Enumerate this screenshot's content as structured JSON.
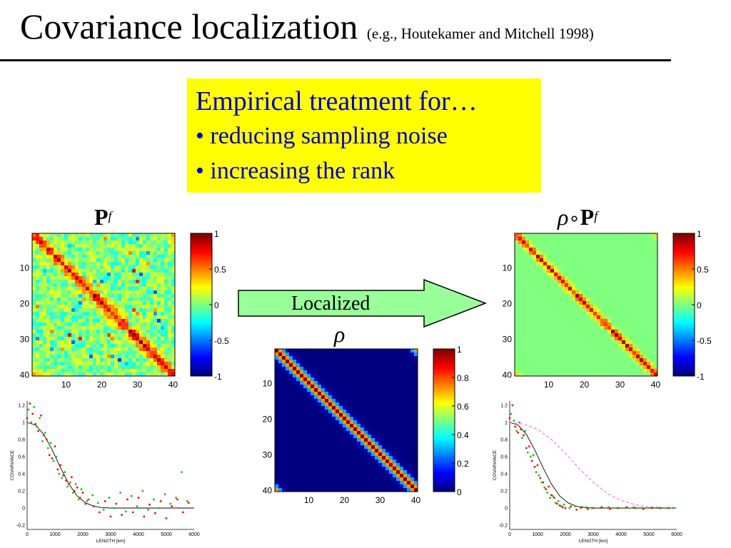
{
  "slide": {
    "title": "Covariance localization",
    "subtitle": "(e.g., Houtekamer and Mitchell 1998)",
    "box": {
      "heading": "Empirical treatment for…",
      "bullet1": "• reducing sampling noise",
      "bullet2": "• increasing the rank"
    },
    "label_pf_main": "P",
    "label_pf_sup": "f",
    "label_rho": "ρ",
    "label_loc_rho": "ρ",
    "label_loc_op": "∘",
    "label_loc_main": "P",
    "label_loc_sup": "f",
    "arrow_label": "Localized",
    "colors": {
      "title": "#000000",
      "box_bg": "#ffff00",
      "box_text": "#0000cc",
      "arrow_fill": "#99ff99",
      "series_red": "#ff0000",
      "series_green": "#00cc00",
      "series_magenta": "#ff44ff"
    }
  },
  "chart_data": [
    {
      "type": "heatmap",
      "id": "pf",
      "size": 40,
      "ticks": [
        "10",
        "20",
        "30",
        "40"
      ],
      "tick_values": [
        10,
        20,
        30,
        40
      ],
      "colorbar": {
        "min": -1,
        "max": 1,
        "ticks": [
          "1",
          "0.5",
          "0",
          "-0.5",
          "-1"
        ],
        "tick_values": [
          1,
          0.5,
          0,
          -0.5,
          -1
        ]
      }
    },
    {
      "type": "heatmap",
      "id": "rho",
      "size": 40,
      "ticks": [
        "10",
        "20",
        "30",
        "40"
      ],
      "tick_values": [
        10,
        20,
        30,
        40
      ],
      "colorbar": {
        "min": 0,
        "max": 1,
        "ticks": [
          "1",
          "0.8",
          "0.6",
          "0.4",
          "0.2",
          "0"
        ],
        "tick_values": [
          1,
          0.8,
          0.6,
          0.4,
          0.2,
          0
        ]
      }
    },
    {
      "type": "heatmap",
      "id": "rho_pf",
      "size": 40,
      "ticks": [
        "10",
        "20",
        "30",
        "40"
      ],
      "tick_values": [
        10,
        20,
        30,
        40
      ],
      "colorbar": {
        "min": -1,
        "max": 1,
        "ticks": [
          "1",
          "0.5",
          "0",
          "-0.5",
          "-1"
        ],
        "tick_values": [
          1,
          0.5,
          0,
          -0.5,
          -1
        ]
      }
    },
    {
      "type": "scatter",
      "id": "cov_left",
      "xlabel": "LENGTH [km]",
      "ylabel": "COVARIANCE",
      "xlim": [
        0,
        6000
      ],
      "ylim": [
        -0.25,
        1.25
      ],
      "xticks": [
        "0",
        "1000",
        "2000",
        "3000",
        "4000",
        "5000",
        "6000"
      ],
      "xtick_values": [
        0,
        1000,
        2000,
        3000,
        4000,
        5000,
        6000
      ],
      "yticks": [
        "1.2",
        "1",
        "0.8",
        "0.6",
        "0.4",
        "0.2",
        "0",
        "-0.2"
      ],
      "ytick_values": [
        1.2,
        1,
        0.8,
        0.6,
        0.4,
        0.2,
        0,
        -0.2
      ],
      "series": [
        {
          "color": "#ff0000",
          "points": [
            [
              0,
              1.05
            ],
            [
              100,
              1.22
            ],
            [
              200,
              1.1
            ],
            [
              300,
              0.98
            ],
            [
              400,
              0.9
            ],
            [
              500,
              1.08
            ],
            [
              600,
              0.85
            ],
            [
              700,
              0.8
            ],
            [
              800,
              0.62
            ],
            [
              900,
              0.58
            ],
            [
              1000,
              0.72
            ],
            [
              1100,
              0.45
            ],
            [
              1200,
              0.5
            ],
            [
              1300,
              0.38
            ],
            [
              1400,
              0.32
            ],
            [
              1500,
              0.28
            ],
            [
              1600,
              0.36
            ],
            [
              1700,
              0.2
            ],
            [
              1800,
              0.24
            ],
            [
              1900,
              0.12
            ],
            [
              2000,
              0.18
            ],
            [
              2100,
              0.05
            ],
            [
              2200,
              0.1
            ],
            [
              2400,
              0.02
            ],
            [
              2600,
              -0.05
            ],
            [
              2800,
              0.08
            ],
            [
              3000,
              -0.1
            ],
            [
              3200,
              0.05
            ],
            [
              3400,
              -0.08
            ],
            [
              3600,
              0.1
            ],
            [
              3800,
              -0.05
            ],
            [
              4000,
              0.12
            ],
            [
              4200,
              -0.1
            ],
            [
              4400,
              0.04
            ],
            [
              4600,
              -0.06
            ],
            [
              4800,
              0.08
            ],
            [
              5000,
              -0.12
            ],
            [
              5200,
              0.02
            ],
            [
              5400,
              0.1
            ],
            [
              5600,
              -0.05
            ],
            [
              5800,
              0.06
            ]
          ]
        },
        {
          "color": "#00cc00",
          "points": [
            [
              50,
              1.15
            ],
            [
              150,
              1.0
            ],
            [
              250,
              1.18
            ],
            [
              350,
              0.95
            ],
            [
              450,
              1.05
            ],
            [
              550,
              0.78
            ],
            [
              650,
              0.88
            ],
            [
              750,
              0.7
            ],
            [
              850,
              0.76
            ],
            [
              950,
              0.55
            ],
            [
              1050,
              0.6
            ],
            [
              1150,
              0.4
            ],
            [
              1250,
              0.35
            ],
            [
              1350,
              0.42
            ],
            [
              1450,
              0.25
            ],
            [
              1550,
              0.3
            ],
            [
              1650,
              0.18
            ],
            [
              1750,
              0.28
            ],
            [
              1850,
              0.1
            ],
            [
              1950,
              0.22
            ],
            [
              2150,
              0.08
            ],
            [
              2350,
              0.15
            ],
            [
              2550,
              0.06
            ],
            [
              2750,
              -0.02
            ],
            [
              2950,
              0.12
            ],
            [
              3150,
              0.0
            ],
            [
              3350,
              0.18
            ],
            [
              3550,
              -0.04
            ],
            [
              3750,
              0.14
            ],
            [
              3950,
              0.02
            ],
            [
              4150,
              0.2
            ],
            [
              4350,
              -0.02
            ],
            [
              4550,
              0.1
            ],
            [
              4750,
              0.0
            ],
            [
              4950,
              0.16
            ],
            [
              5150,
              0.05
            ],
            [
              5350,
              0.12
            ],
            [
              5550,
              0.42
            ],
            [
              5750,
              0.08
            ]
          ]
        }
      ],
      "curves": [
        {
          "color": "#000000",
          "points": [
            [
              0,
              1.0
            ],
            [
              300,
              0.97
            ],
            [
              600,
              0.86
            ],
            [
              900,
              0.68
            ],
            [
              1200,
              0.47
            ],
            [
              1500,
              0.28
            ],
            [
              1800,
              0.14
            ],
            [
              2100,
              0.06
            ],
            [
              2400,
              0.02
            ],
            [
              2700,
              0.005
            ],
            [
              3000,
              0.0
            ],
            [
              6000,
              0.0
            ]
          ]
        }
      ]
    },
    {
      "type": "scatter",
      "id": "cov_right",
      "xlabel": "LENGTH [km]",
      "ylabel": "COVARIANCE",
      "xlim": [
        0,
        6000
      ],
      "ylim": [
        -0.25,
        1.25
      ],
      "xticks": [
        "0",
        "1000",
        "2000",
        "3000",
        "4000",
        "5000",
        "6000"
      ],
      "xtick_values": [
        0,
        1000,
        2000,
        3000,
        4000,
        5000,
        6000
      ],
      "yticks": [
        "1.2",
        "1",
        "0.8",
        "0.6",
        "0.4",
        "0.2",
        "0",
        "-0.2"
      ],
      "ytick_values": [
        1.2,
        1,
        0.8,
        0.6,
        0.4,
        0.2,
        0,
        -0.2
      ],
      "series": [
        {
          "color": "#ff0000",
          "points": [
            [
              0,
              1.05
            ],
            [
              100,
              1.2
            ],
            [
              200,
              0.95
            ],
            [
              300,
              0.88
            ],
            [
              400,
              0.92
            ],
            [
              500,
              0.85
            ],
            [
              600,
              0.7
            ],
            [
              700,
              0.72
            ],
            [
              800,
              0.55
            ],
            [
              900,
              0.48
            ],
            [
              1000,
              0.5
            ],
            [
              1100,
              0.35
            ],
            [
              1200,
              0.3
            ],
            [
              1300,
              0.22
            ],
            [
              1400,
              0.25
            ],
            [
              1500,
              0.15
            ],
            [
              1600,
              0.12
            ],
            [
              1700,
              0.05
            ],
            [
              1800,
              0.03
            ],
            [
              1900,
              0.01
            ],
            [
              2000,
              0.0
            ],
            [
              2200,
              0.02
            ],
            [
              2400,
              -0.02
            ],
            [
              2600,
              0.01
            ],
            [
              2800,
              -0.01
            ],
            [
              3000,
              0.0
            ],
            [
              3300,
              0.01
            ],
            [
              3600,
              -0.01
            ],
            [
              3900,
              0.0
            ],
            [
              4200,
              0.01
            ],
            [
              4500,
              0.0
            ],
            [
              4800,
              -0.01
            ],
            [
              5100,
              0.0
            ],
            [
              5400,
              0.0
            ],
            [
              5700,
              0.0
            ]
          ]
        },
        {
          "color": "#00cc00",
          "points": [
            [
              50,
              1.1
            ],
            [
              150,
              1.02
            ],
            [
              250,
              0.9
            ],
            [
              350,
              1.0
            ],
            [
              450,
              0.82
            ],
            [
              550,
              0.9
            ],
            [
              650,
              0.65
            ],
            [
              750,
              0.6
            ],
            [
              850,
              0.62
            ],
            [
              950,
              0.42
            ],
            [
              1050,
              0.38
            ],
            [
              1150,
              0.3
            ],
            [
              1250,
              0.24
            ],
            [
              1350,
              0.18
            ],
            [
              1450,
              0.12
            ],
            [
              1550,
              0.14
            ],
            [
              1650,
              0.06
            ],
            [
              1750,
              0.08
            ],
            [
              1850,
              0.02
            ],
            [
              1950,
              0.04
            ],
            [
              2150,
              0.0
            ],
            [
              2350,
              0.02
            ],
            [
              2550,
              0.0
            ],
            [
              2750,
              0.01
            ],
            [
              2950,
              0.0
            ],
            [
              3250,
              0.0
            ],
            [
              3550,
              0.01
            ],
            [
              3850,
              0.0
            ],
            [
              4150,
              0.0
            ],
            [
              4450,
              0.01
            ],
            [
              4750,
              0.0
            ],
            [
              5050,
              0.0
            ],
            [
              5350,
              0.0
            ],
            [
              5650,
              0.0
            ],
            [
              5850,
              0.0
            ]
          ]
        }
      ],
      "curves": [
        {
          "color": "#000000",
          "points": [
            [
              0,
              1.0
            ],
            [
              300,
              0.97
            ],
            [
              600,
              0.86
            ],
            [
              900,
              0.68
            ],
            [
              1200,
              0.47
            ],
            [
              1500,
              0.28
            ],
            [
              1800,
              0.14
            ],
            [
              2100,
              0.06
            ],
            [
              2400,
              0.02
            ],
            [
              2700,
              0.005
            ],
            [
              3000,
              0.0
            ],
            [
              6000,
              0.0
            ]
          ]
        },
        {
          "color": "#ff44ff",
          "dashed": true,
          "points": [
            [
              0,
              1.0
            ],
            [
              500,
              0.98
            ],
            [
              1000,
              0.92
            ],
            [
              1500,
              0.8
            ],
            [
              2000,
              0.64
            ],
            [
              2500,
              0.46
            ],
            [
              3000,
              0.3
            ],
            [
              3500,
              0.17
            ],
            [
              4000,
              0.09
            ],
            [
              4500,
              0.04
            ],
            [
              5000,
              0.015
            ],
            [
              5500,
              0.005
            ],
            [
              6000,
              0.0
            ]
          ]
        }
      ]
    }
  ]
}
